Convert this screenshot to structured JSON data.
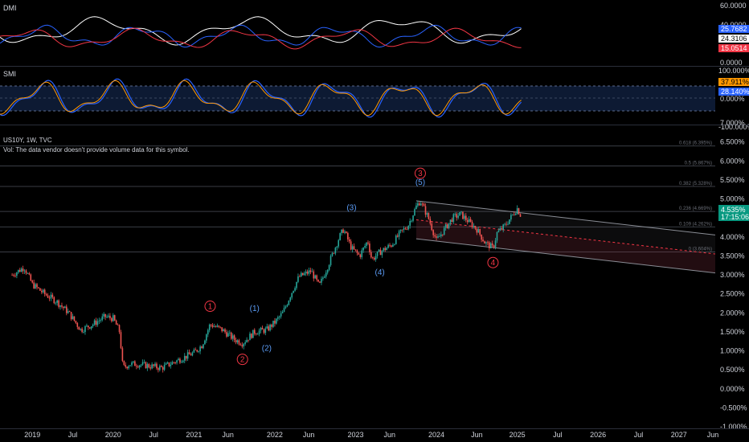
{
  "colors": {
    "background": "#000000",
    "up": "#26a69a",
    "down": "#ef5350",
    "dmi_plus": "#2962ff",
    "dmi_minus": "#f23645",
    "adx": "#ffffff",
    "smi": "#2962ff",
    "smi_signal": "#ff9800",
    "wave_red": "#f23645",
    "wave_blue": "#5b9cf6",
    "price_tag": "#089981"
  },
  "dmi": {
    "title": "DMI",
    "axis": [
      "60.0000",
      "40.0000",
      "0.0000"
    ],
    "tags": [
      {
        "text": "25.7682",
        "color": "#2962ff",
        "text_color": "#ffffff"
      },
      {
        "text": "24.3106",
        "color": "#ffffff",
        "text_color": "#000000"
      },
      {
        "text": "15.0514",
        "color": "#f23645",
        "text_color": "#ffffff"
      }
    ]
  },
  "smi": {
    "title": "SMI",
    "axis": [
      "100.000%",
      "0.000%",
      "-100.000%"
    ],
    "tags": [
      {
        "text": "37.911%",
        "color": "#ff9800",
        "text_color": "#000000"
      },
      {
        "text": "28.140%",
        "color": "#2962ff",
        "text_color": "#ffffff"
      }
    ]
  },
  "main": {
    "symbol_line": "US10Y, 1W, TVC",
    "volume_note": "Vol: The data vendor doesn't provide volume data for this symbol.",
    "price_tag": "4.535%",
    "countdown_tag": "17:15:06",
    "fib_labels": [
      "0.618 (6.395%)",
      "0.5 (5.867%)",
      "0.382 (5.328%)",
      "0.236 (4.669%)",
      "0.109 (4.262%)",
      "0 (3.604%)"
    ],
    "wave_labels": [
      {
        "text": "1",
        "color": "red",
        "circled": true
      },
      {
        "text": "2",
        "color": "red",
        "circled": true
      },
      {
        "text": "3",
        "color": "red",
        "circled": true
      },
      {
        "text": "4",
        "color": "red",
        "circled": true
      },
      {
        "text": "(1)",
        "color": "blue",
        "circled": false
      },
      {
        "text": "(2)",
        "color": "blue",
        "circled": false
      },
      {
        "text": "(3)",
        "color": "blue",
        "circled": false
      },
      {
        "text": "(4)",
        "color": "blue",
        "circled": false
      },
      {
        "text": "(5)",
        "color": "blue",
        "circled": false
      }
    ]
  },
  "chart_data": {
    "type": "candlestick",
    "title": "US10Y, 1W, TVC",
    "xlabel": "",
    "ylabel": "",
    "ylim": [
      -1.0,
      7.0
    ],
    "y_ticks": [
      "7.000%",
      "6.500%",
      "6.000%",
      "5.500%",
      "5.000%",
      "4.500%",
      "4.000%",
      "3.500%",
      "3.000%",
      "2.500%",
      "2.000%",
      "1.500%",
      "1.000%",
      "0.500%",
      "0.000%",
      "-0.500%",
      "-1.000%"
    ],
    "x_ticks": [
      "2019",
      "Jul",
      "2020",
      "Jul",
      "2021",
      "Jun",
      "2022",
      "Jun",
      "2023",
      "Jun",
      "2024",
      "Jun",
      "2025",
      "Jul",
      "2026",
      "Jul",
      "2027",
      "Jun"
    ],
    "series": [
      {
        "x": [
          2018.75,
          2018.9,
          2019.0,
          2019.15,
          2019.3,
          2019.45,
          2019.6,
          2019.75,
          2019.9,
          2020.0,
          2020.08,
          2020.12,
          2020.2,
          2020.3,
          2020.45,
          2020.6,
          2020.75,
          2020.9,
          2021.0,
          2021.1,
          2021.2,
          2021.35,
          2021.5,
          2021.6,
          2021.75,
          2021.9,
          2022.0,
          2022.1,
          2022.2,
          2022.3,
          2022.45,
          2022.55,
          2022.65,
          2022.8,
          2022.85,
          2022.95,
          2023.05,
          2023.15,
          2023.2,
          2023.3,
          2023.45,
          2023.55,
          2023.65,
          2023.75,
          2023.8,
          2023.9,
          2024.0,
          2024.1,
          2024.2,
          2024.3,
          2024.4,
          2024.5,
          2024.6,
          2024.7,
          2024.75,
          2024.85,
          2024.95,
          2025.0,
          2025.05
        ],
        "values": [
          3.0,
          3.2,
          2.75,
          2.5,
          2.3,
          2.0,
          1.55,
          1.7,
          1.9,
          1.85,
          1.5,
          0.55,
          0.65,
          0.65,
          0.6,
          0.55,
          0.7,
          0.85,
          0.95,
          1.15,
          1.7,
          1.55,
          1.3,
          1.2,
          1.5,
          1.55,
          1.75,
          2.0,
          2.5,
          2.95,
          3.1,
          2.7,
          3.2,
          4.0,
          4.2,
          3.7,
          3.5,
          3.9,
          3.4,
          3.6,
          3.8,
          4.1,
          4.3,
          4.8,
          4.95,
          4.5,
          3.9,
          4.2,
          4.5,
          4.6,
          4.4,
          4.2,
          3.85,
          3.7,
          4.1,
          4.3,
          4.6,
          4.75,
          4.535
        ]
      }
    ]
  }
}
